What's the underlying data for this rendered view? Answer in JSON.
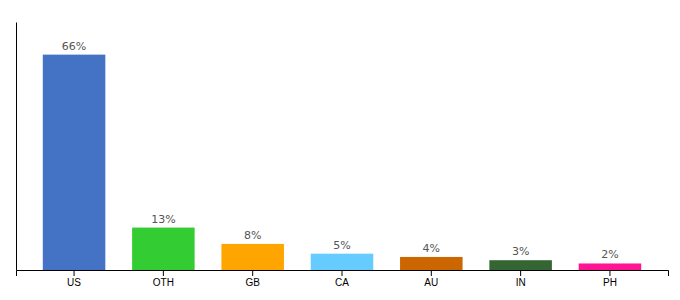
{
  "chart_data": {
    "type": "bar",
    "categories": [
      "US",
      "OTH",
      "GB",
      "CA",
      "AU",
      "IN",
      "PH"
    ],
    "values": [
      66,
      13,
      8,
      5,
      4,
      3,
      2
    ],
    "value_labels": [
      "66%",
      "13%",
      "8%",
      "5%",
      "4%",
      "3%",
      "2%"
    ],
    "colors": [
      "#4472C4",
      "#33CC33",
      "#FFA500",
      "#66CCFF",
      "#CC6600",
      "#336633",
      "#FF1493"
    ],
    "ylim": [
      0,
      76
    ],
    "data_labels": true,
    "tick_labels": "x",
    "grid": false
  }
}
